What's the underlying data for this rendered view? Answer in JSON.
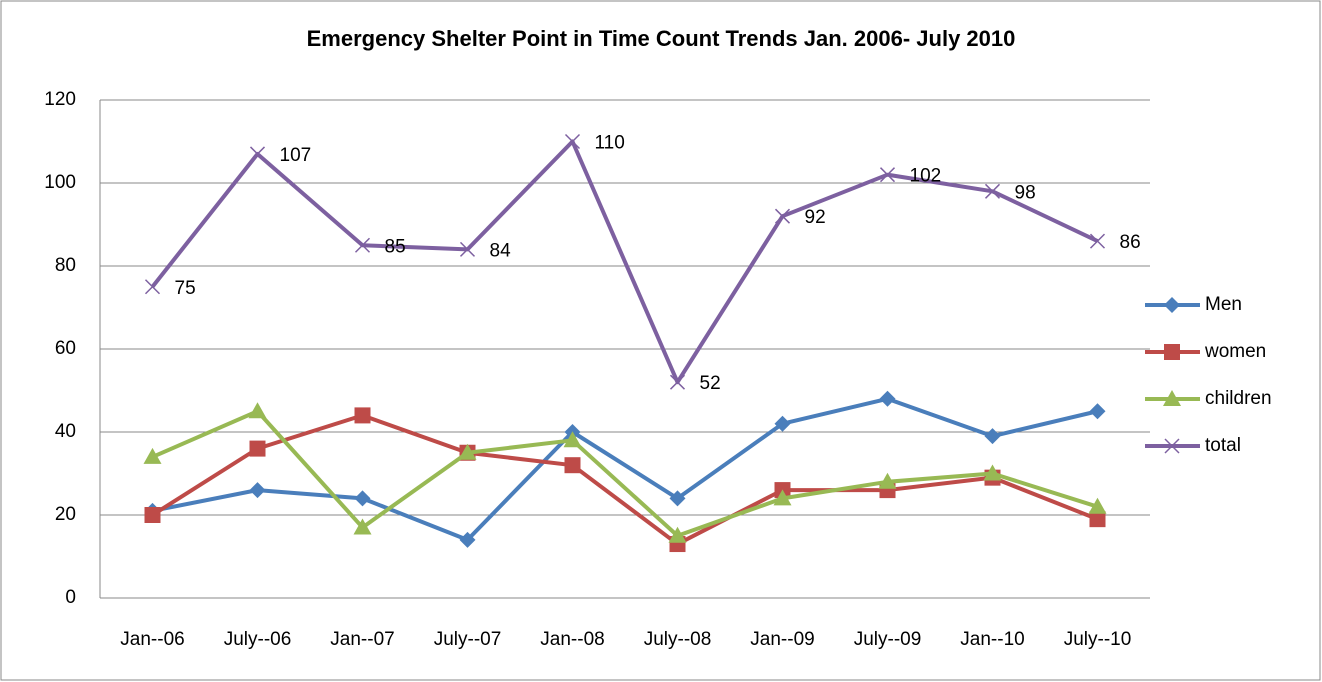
{
  "chart_data": {
    "type": "line",
    "title": "Emergency Shelter Point in Time Count Trends Jan. 2006- July 2010",
    "categories": [
      "Jan--06",
      "July--06",
      "Jan--07",
      "July--07",
      "Jan--08",
      "July--08",
      "Jan--09",
      "July--09",
      "Jan--10",
      "July--10"
    ],
    "series": [
      {
        "name": "Men",
        "color": "#4a7ebb",
        "marker": "diamond",
        "values": [
          21,
          26,
          24,
          14,
          40,
          24,
          42,
          48,
          39,
          45
        ]
      },
      {
        "name": "women",
        "color": "#be4b48",
        "marker": "square",
        "values": [
          20,
          36,
          44,
          35,
          32,
          13,
          26,
          26,
          29,
          19
        ]
      },
      {
        "name": "children",
        "color": "#98b954",
        "marker": "triangle",
        "values": [
          34,
          45,
          17,
          35,
          38,
          15,
          24,
          28,
          30,
          22
        ]
      },
      {
        "name": "total",
        "color": "#7d60a0",
        "marker": "x",
        "data_labels": true,
        "values": [
          75,
          107,
          85,
          84,
          110,
          52,
          92,
          102,
          98,
          86
        ]
      }
    ],
    "ylim": [
      0,
      120
    ],
    "yticks": [
      0,
      20,
      40,
      60,
      80,
      100,
      120
    ],
    "grid": true,
    "legend": "right"
  }
}
